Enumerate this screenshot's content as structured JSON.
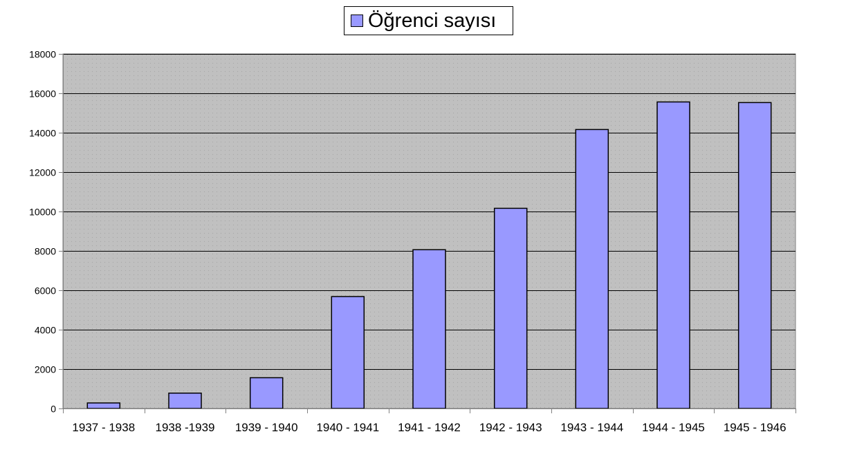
{
  "chart_data": {
    "type": "bar",
    "title": "",
    "xlabel": "",
    "ylabel": "",
    "categories": [
      "1937 - 1938",
      "1938 -1939",
      "1939 - 1940",
      "1940 - 1941",
      "1941 - 1942",
      "1942 - 1943",
      "1943 - 1944",
      "1944 - 1945",
      "1945 - 1946"
    ],
    "series": [
      {
        "name": "Öğrenci sayısı",
        "values": [
          280,
          780,
          1560,
          5680,
          8060,
          10160,
          14160,
          15560,
          15530
        ]
      }
    ],
    "ylim": [
      0,
      18000
    ],
    "yticks": [
      0,
      2000,
      4000,
      6000,
      8000,
      10000,
      12000,
      14000,
      16000,
      18000
    ],
    "ytick_labels": [
      "0",
      "2000",
      "4000",
      "6000",
      "8000",
      "10000",
      "12000",
      "14000",
      "16000",
      "18000"
    ],
    "grid": "horizontal",
    "legend_position": "top-center",
    "colors": {
      "bar_fill": "#9999ff",
      "bar_stroke": "#000000",
      "plot_background": "#c0c0c0",
      "gridline": "#000000",
      "axis": "#808080"
    }
  }
}
